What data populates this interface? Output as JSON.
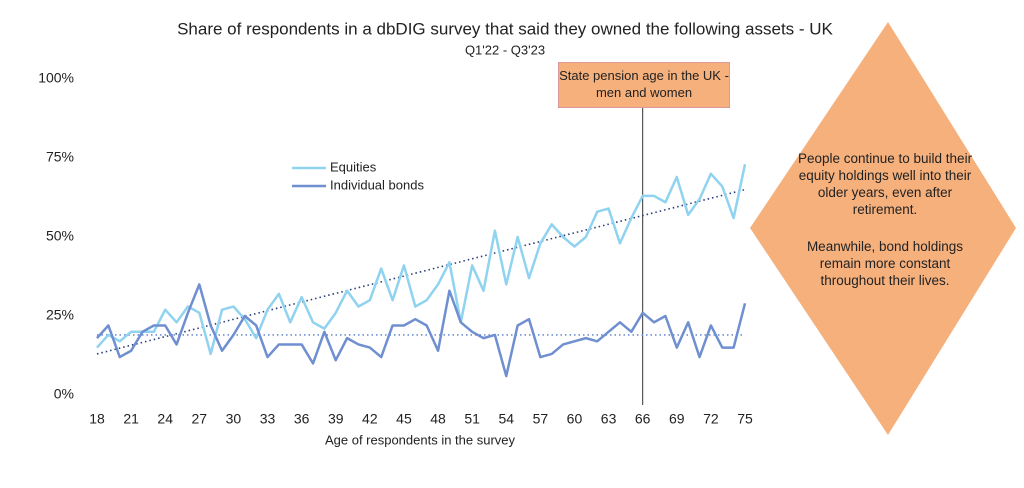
{
  "chart_data": {
    "type": "line",
    "title": "Share of respondents in a dbDIG survey that said they owned the following assets - UK",
    "subtitle": "Q1'22 - Q3'23",
    "x_label": "Age of respondents in the survey",
    "x": [
      18,
      19,
      20,
      21,
      22,
      23,
      24,
      25,
      26,
      27,
      28,
      29,
      30,
      31,
      32,
      33,
      34,
      35,
      36,
      37,
      38,
      39,
      40,
      41,
      42,
      43,
      44,
      45,
      46,
      47,
      48,
      49,
      50,
      51,
      52,
      53,
      54,
      55,
      56,
      57,
      58,
      59,
      60,
      61,
      62,
      63,
      64,
      65,
      66,
      67,
      68,
      69,
      70,
      71,
      72,
      73,
      74,
      75
    ],
    "xlim": [
      18,
      75
    ],
    "xticks": [
      18,
      21,
      24,
      27,
      30,
      33,
      36,
      39,
      42,
      45,
      48,
      51,
      54,
      57,
      60,
      63,
      66,
      69,
      72,
      75
    ],
    "ylim": [
      0,
      100
    ],
    "yticks": [
      {
        "value": 0,
        "label": "0%"
      },
      {
        "value": 25,
        "label": "25%"
      },
      {
        "value": 50,
        "label": "50%"
      },
      {
        "value": 75,
        "label": "75%"
      },
      {
        "value": 100,
        "label": "100%"
      }
    ],
    "series": [
      {
        "name": "Equities",
        "color": "#8fd3f0",
        "values": [
          15,
          19,
          17,
          20,
          20,
          20,
          27,
          23,
          28,
          26,
          13,
          27,
          28,
          24,
          18,
          27,
          32,
          23,
          31,
          23,
          21,
          26,
          33,
          28,
          30,
          40,
          30,
          41,
          28,
          30,
          35,
          42,
          23,
          41,
          33,
          52,
          35,
          50,
          37,
          48,
          54,
          50,
          47,
          50,
          58,
          59,
          48,
          56,
          63,
          63,
          61,
          69,
          57,
          62,
          70,
          66,
          56,
          73
        ],
        "trend": {
          "x": [
            18,
            75
          ],
          "values": [
            13,
            65
          ],
          "color": "#2a3f7a"
        }
      },
      {
        "name": "Individual bonds",
        "color": "#6f8fd0",
        "values": [
          18,
          22,
          12,
          14,
          20,
          22,
          22,
          16,
          26,
          35,
          22,
          14,
          19,
          25,
          22,
          12,
          16,
          16,
          16,
          10,
          20,
          11,
          18,
          16,
          15,
          12,
          22,
          22,
          24,
          22,
          14,
          33,
          23,
          20,
          18,
          19,
          6,
          22,
          24,
          12,
          13,
          16,
          17,
          18,
          17,
          20,
          23,
          20,
          26,
          23,
          25,
          15,
          23,
          12,
          22,
          15,
          15,
          29
        ],
        "trend": {
          "x": [
            18,
            75
          ],
          "values": [
            19,
            19
          ],
          "color": "#6f8fd0"
        }
      }
    ],
    "reference_line": {
      "x": 66,
      "label": "State pension age in the UK - men and women",
      "color": "#f6b07c"
    },
    "callout": {
      "color": "#f6b07c",
      "texts": [
        "People continue to build their equity holdings well into their older years, even after retirement.",
        "Meanwhile, bond holdings remain more constant throughout their lives."
      ]
    }
  }
}
